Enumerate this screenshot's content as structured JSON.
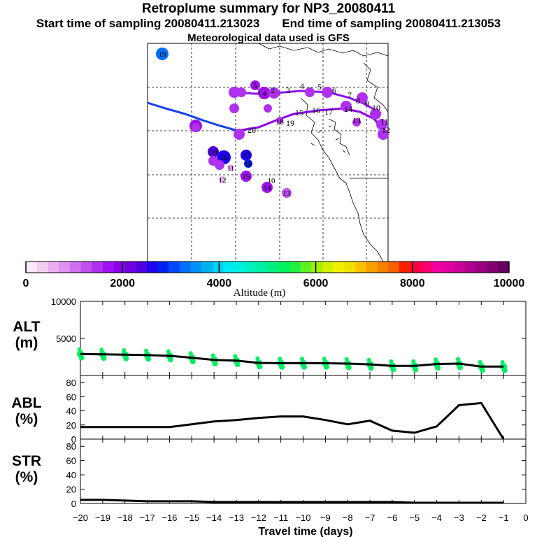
{
  "titles": {
    "main": "Retroplume summary for NP3_20080411",
    "start": "Start time of sampling 20080411.213023",
    "end": "End time of sampling 20080411.213053",
    "met": "Meteorological data used is GFS"
  },
  "colorbar": {
    "tick_labels": [
      "0",
      "2000",
      "4000",
      "6000",
      "8000",
      "10000"
    ],
    "label": "Altitude  (m)",
    "range": [
      0,
      10000
    ],
    "colors": [
      "#f8e8f8",
      "#f0d0f0",
      "#e8b0f0",
      "#e090f0",
      "#d070f0",
      "#c050f0",
      "#b030f0",
      "#a010f0",
      "#8a00e8",
      "#7000e0",
      "#5000e0",
      "#2000f0",
      "#0020f0",
      "#0048f8",
      "#0070f8",
      "#0090f8",
      "#00b0f0",
      "#00d0f0",
      "#00e8f0",
      "#00f0e0",
      "#00f0c0",
      "#00f0a0",
      "#00f080",
      "#00f060",
      "#20f040",
      "#60f020",
      "#a0f000",
      "#d0f000",
      "#f0f000",
      "#f0e000",
      "#f8c000",
      "#f8a000",
      "#f88000",
      "#f86000",
      "#f82000",
      "#f80040",
      "#f80070",
      "#f000a0",
      "#e000a0",
      "#c80098",
      "#b00090",
      "#980080",
      "#800070",
      "#680060"
    ]
  },
  "map": {
    "trajectory_labels": [
      "1",
      "2",
      "3",
      "4",
      "5",
      "6",
      "7",
      "8",
      "9",
      "10",
      "11",
      "12",
      "13",
      "14",
      "15",
      "16",
      "17",
      "18",
      "19",
      "20"
    ],
    "labeled_points": [
      {
        "label": "19",
        "alt": 3200,
        "size": 9
      },
      {
        "label": "15",
        "alt": 1800,
        "size": 9
      },
      {
        "label": "5",
        "alt": 1600,
        "size": 7
      },
      {
        "label": "4",
        "alt": 1700,
        "size": 9
      },
      {
        "label": "16",
        "alt": 2600,
        "size": 10
      },
      {
        "label": "17",
        "alt": 2700,
        "size": 8
      },
      {
        "label": "18",
        "alt": 2900,
        "size": 6
      },
      {
        "label": "20",
        "alt": 2300,
        "size": 8
      },
      {
        "label": "15",
        "alt": 1800,
        "size": 8
      },
      {
        "label": "14",
        "alt": 1700,
        "size": 8
      },
      {
        "label": "13",
        "alt": 1300,
        "size": 7
      },
      {
        "label": "12",
        "alt": 600,
        "size": 5
      },
      {
        "label": "11",
        "alt": 700,
        "size": 4
      },
      {
        "label": "10",
        "alt": 500,
        "size": 0
      }
    ]
  },
  "chart_data": [
    {
      "type": "scatter-line",
      "panel": "ALT",
      "ylabel": "ALT\n(m)",
      "ylim": [
        0,
        10000
      ],
      "yticks": [
        0,
        5000,
        10000
      ],
      "ytick_labels": [
        "",
        "5000",
        "10000"
      ],
      "xlim": [
        -20,
        0
      ],
      "x": [
        -20,
        -19,
        -18,
        -17,
        -16,
        -15,
        -14,
        -13,
        -12,
        -11,
        -10,
        -9,
        -8,
        -7,
        -6,
        -5,
        -4,
        -3,
        -2,
        -1
      ],
      "values": [
        2900,
        2850,
        2800,
        2750,
        2650,
        2400,
        2100,
        2000,
        1700,
        1650,
        1650,
        1650,
        1600,
        1500,
        1300,
        1300,
        1550,
        1600,
        1200,
        1200
      ],
      "series_color": "#000000",
      "point_color": "#00f060"
    },
    {
      "type": "line",
      "panel": "ABL",
      "ylabel": "ABL\n(%)",
      "ylim": [
        0,
        90
      ],
      "yticks": [
        0,
        20,
        40,
        60,
        80
      ],
      "ytick_labels": [
        "0",
        "20",
        "40",
        "60",
        "80"
      ],
      "xlim": [
        -20,
        0
      ],
      "x": [
        -20,
        -19,
        -18,
        -17,
        -16,
        -15,
        -14,
        -13,
        -12,
        -11,
        -10,
        -9,
        -8,
        -7,
        -6,
        -5,
        -4,
        -3,
        -2,
        -1
      ],
      "values": [
        17,
        17,
        17,
        17,
        17,
        21,
        25,
        27,
        30,
        32,
        32,
        27,
        21,
        26,
        12,
        9,
        18,
        48,
        51,
        0
      ]
    },
    {
      "type": "line",
      "panel": "STR",
      "ylabel": "STR\n(%)",
      "ylim": [
        0,
        90
      ],
      "yticks": [
        0,
        20,
        40,
        60,
        80
      ],
      "ytick_labels": [
        "0",
        "20",
        "40",
        "60",
        "80"
      ],
      "xlabel": "Travel time (days)",
      "xlim": [
        -20,
        0
      ],
      "xticks": [
        -20,
        -19,
        -18,
        -17,
        -16,
        -15,
        -14,
        -13,
        -12,
        -11,
        -10,
        -9,
        -8,
        -7,
        -6,
        -5,
        -4,
        -3,
        -2,
        -1,
        0
      ],
      "xtick_labels": [
        "−20",
        "−19",
        "−18",
        "−17",
        "−16",
        "−15",
        "−14",
        "−13",
        "−12",
        "−11",
        "−10",
        "−9",
        "−8",
        "−7",
        "−6",
        "−5",
        "−4",
        "−3",
        "−2",
        "−1",
        "0"
      ],
      "x": [
        -20,
        -19,
        -18,
        -17,
        -16,
        -15,
        -14,
        -13,
        -12,
        -11,
        -10,
        -9,
        -8,
        -7,
        -6,
        -5,
        -4,
        -3,
        -2,
        -1
      ],
      "values": [
        5,
        5,
        4,
        3,
        3,
        3,
        2,
        2,
        2,
        2,
        2,
        2,
        2,
        2,
        2,
        1,
        1,
        1,
        1,
        1
      ]
    }
  ]
}
